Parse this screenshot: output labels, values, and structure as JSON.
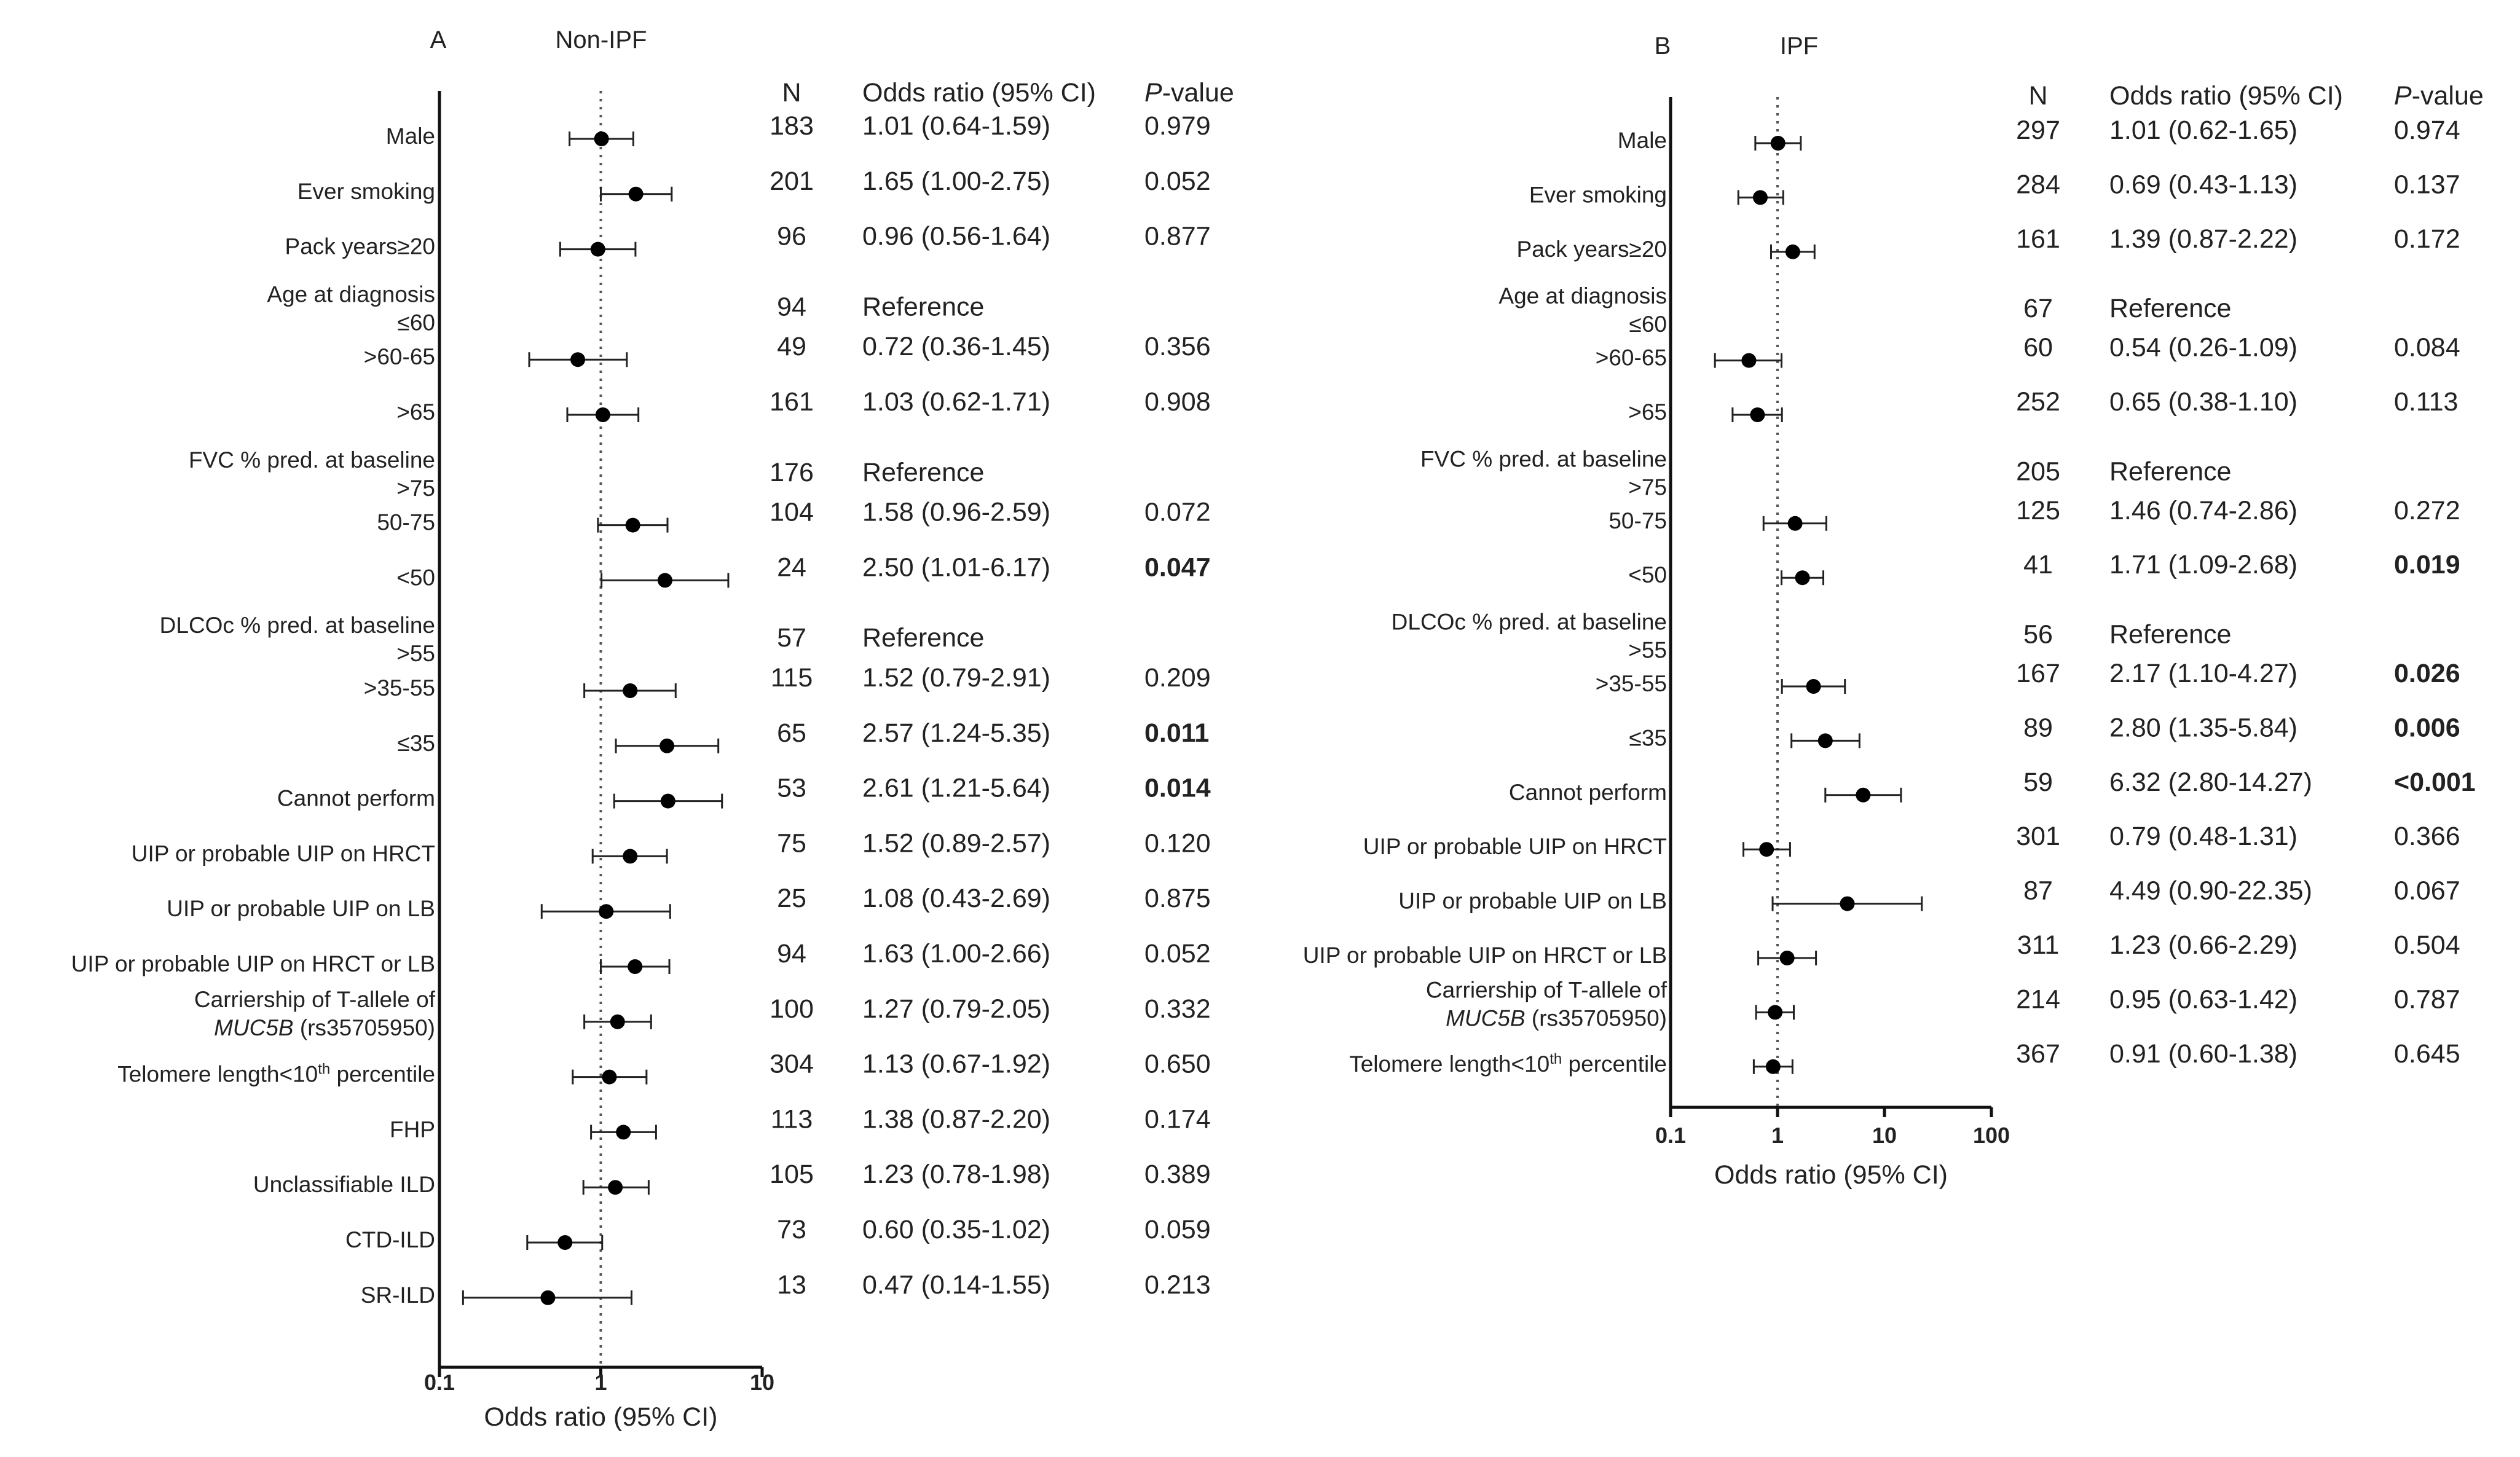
{
  "chart_data": [
    {
      "type": "forest",
      "panel_letter": "A",
      "title": "Non-IPF",
      "columns": {
        "n": "N",
        "or": "Odds ratio (95% CI)",
        "p_italic": "P",
        "p_rest": "-value"
      },
      "xlabel": "Odds ratio (95% CI)",
      "xscale": "log",
      "xlim": [
        0.1,
        10
      ],
      "xticks": [
        0.1,
        1,
        10
      ],
      "xtick_labels": [
        "0.1",
        "1",
        "10"
      ],
      "reference_line": 1,
      "rows": [
        {
          "label": "Male",
          "n": "183",
          "or_text": "1.01 (0.64-1.59)",
          "p": "0.979",
          "bold": false,
          "or": 1.01,
          "lo": 0.64,
          "hi": 1.59
        },
        {
          "label": "Ever smoking",
          "n": "201",
          "or_text": "1.65 (1.00-2.75)",
          "p": "0.052",
          "bold": false,
          "or": 1.65,
          "lo": 1.0,
          "hi": 2.75
        },
        {
          "label": "Pack years≥20",
          "n": "96",
          "or_text": "0.96 (0.56-1.64)",
          "p": "0.877",
          "bold": false,
          "or": 0.96,
          "lo": 0.56,
          "hi": 1.64
        },
        {
          "label": "Age at diagnosis",
          "label2": "≤60",
          "n": "94",
          "or_text": "Reference",
          "p": "",
          "bold": false
        },
        {
          "label": ">60-65",
          "n": "49",
          "or_text": "0.72 (0.36-1.45)",
          "p": "0.356",
          "bold": false,
          "or": 0.72,
          "lo": 0.36,
          "hi": 1.45
        },
        {
          "label": ">65",
          "n": "161",
          "or_text": "1.03 (0.62-1.71)",
          "p": "0.908",
          "bold": false,
          "or": 1.03,
          "lo": 0.62,
          "hi": 1.71
        },
        {
          "label": "FVC % pred. at baseline",
          "label2": ">75",
          "n": "176",
          "or_text": "Reference",
          "p": "",
          "bold": false
        },
        {
          "label": "50-75",
          "n": "104",
          "or_text": "1.58 (0.96-2.59)",
          "p": "0.072",
          "bold": false,
          "or": 1.58,
          "lo": 0.96,
          "hi": 2.59
        },
        {
          "label": "<50",
          "n": "24",
          "or_text": "2.50 (1.01-6.17)",
          "p": "0.047",
          "bold": true,
          "or": 2.5,
          "lo": 1.01,
          "hi": 6.17
        },
        {
          "label": "DLCOc % pred. at baseline",
          "label2": ">55",
          "n": "57",
          "or_text": "Reference",
          "p": "",
          "bold": false
        },
        {
          "label": ">35-55",
          "n": "115",
          "or_text": "1.52 (0.79-2.91)",
          "p": "0.209",
          "bold": false,
          "or": 1.52,
          "lo": 0.79,
          "hi": 2.91
        },
        {
          "label": "≤35",
          "n": "65",
          "or_text": "2.57 (1.24-5.35)",
          "p": "0.011",
          "bold": true,
          "or": 2.57,
          "lo": 1.24,
          "hi": 5.35
        },
        {
          "label": "Cannot perform",
          "n": "53",
          "or_text": "2.61 (1.21-5.64)",
          "p": "0.014",
          "bold": true,
          "or": 2.61,
          "lo": 1.21,
          "hi": 5.64
        },
        {
          "label": "UIP or probable UIP on HRCT",
          "n": "75",
          "or_text": "1.52 (0.89-2.57)",
          "p": "0.120",
          "bold": false,
          "or": 1.52,
          "lo": 0.89,
          "hi": 2.57
        },
        {
          "label": "UIP or probable UIP on LB",
          "n": "25",
          "or_text": "1.08 (0.43-2.69)",
          "p": "0.875",
          "bold": false,
          "or": 1.08,
          "lo": 0.43,
          "hi": 2.69
        },
        {
          "label": "UIP or probable UIP on HRCT or LB",
          "n": "94",
          "or_text": "1.63 (1.00-2.66)",
          "p": "0.052",
          "bold": false,
          "or": 1.63,
          "lo": 1.0,
          "hi": 2.66
        },
        {
          "label": "Carriership of T-allele of",
          "label2_italic": "MUC5B",
          "label2_rest": " (rs35705950)",
          "n": "100",
          "or_text": "1.27 (0.79-2.05)",
          "p": "0.332",
          "bold": false,
          "or": 1.27,
          "lo": 0.79,
          "hi": 2.05
        },
        {
          "label": "Telomere length<10",
          "label_sup": "th",
          "label_after": " percentile",
          "n": "304",
          "or_text": "1.13 (0.67-1.92)",
          "p": "0.650",
          "bold": false,
          "or": 1.13,
          "lo": 0.67,
          "hi": 1.92
        },
        {
          "label": "FHP",
          "n": "113",
          "or_text": "1.38 (0.87-2.20)",
          "p": "0.174",
          "bold": false,
          "or": 1.38,
          "lo": 0.87,
          "hi": 2.2
        },
        {
          "label": "Unclassifiable ILD",
          "n": "105",
          "or_text": "1.23 (0.78-1.98)",
          "p": "0.389",
          "bold": false,
          "or": 1.23,
          "lo": 0.78,
          "hi": 1.98
        },
        {
          "label": "CTD-ILD",
          "n": "73",
          "or_text": "0.60 (0.35-1.02)",
          "p": "0.059",
          "bold": false,
          "or": 0.6,
          "lo": 0.35,
          "hi": 1.02
        },
        {
          "label": "SR-ILD",
          "n": "13",
          "or_text": "0.47 (0.14-1.55)",
          "p": "0.213",
          "bold": false,
          "or": 0.47,
          "lo": 0.14,
          "hi": 1.55
        }
      ]
    },
    {
      "type": "forest",
      "panel_letter": "B",
      "title": "IPF",
      "columns": {
        "n": "N",
        "or": "Odds ratio (95% CI)",
        "p_italic": "P",
        "p_rest": "-value"
      },
      "xlabel": "Odds ratio (95% CI)",
      "xscale": "log",
      "xlim": [
        0.1,
        100
      ],
      "xticks": [
        0.1,
        1,
        10,
        100
      ],
      "xtick_labels": [
        "0.1",
        "1",
        "10",
        "100"
      ],
      "reference_line": 1,
      "rows": [
        {
          "label": "Male",
          "n": "297",
          "or_text": "1.01 (0.62-1.65)",
          "p": "0.974",
          "bold": false,
          "or": 1.01,
          "lo": 0.62,
          "hi": 1.65
        },
        {
          "label": "Ever smoking",
          "n": "284",
          "or_text": "0.69 (0.43-1.13)",
          "p": "0.137",
          "bold": false,
          "or": 0.69,
          "lo": 0.43,
          "hi": 1.13
        },
        {
          "label": "Pack years≥20",
          "n": "161",
          "or_text": "1.39 (0.87-2.22)",
          "p": "0.172",
          "bold": false,
          "or": 1.39,
          "lo": 0.87,
          "hi": 2.22
        },
        {
          "label": "Age at diagnosis",
          "label2": "≤60",
          "n": "67",
          "or_text": "Reference",
          "p": "",
          "bold": false
        },
        {
          "label": ">60-65",
          "n": "60",
          "or_text": "0.54 (0.26-1.09)",
          "p": "0.084",
          "bold": false,
          "or": 0.54,
          "lo": 0.26,
          "hi": 1.09
        },
        {
          "label": ">65",
          "n": "252",
          "or_text": "0.65 (0.38-1.10)",
          "p": "0.113",
          "bold": false,
          "or": 0.65,
          "lo": 0.38,
          "hi": 1.1
        },
        {
          "label": "FVC % pred. at baseline",
          "label2": ">75",
          "n": "205",
          "or_text": "Reference",
          "p": "",
          "bold": false
        },
        {
          "label": "50-75",
          "n": "125",
          "or_text": "1.46 (0.74-2.86)",
          "p": "0.272",
          "bold": false,
          "or": 1.46,
          "lo": 0.74,
          "hi": 2.86
        },
        {
          "label": "<50",
          "n": "41",
          "or_text": "1.71 (1.09-2.68)",
          "p": "0.019",
          "bold": true,
          "or": 1.71,
          "lo": 1.09,
          "hi": 2.68
        },
        {
          "label": "DLCOc % pred. at baseline",
          "label2": ">55",
          "n": "56",
          "or_text": "Reference",
          "p": "",
          "bold": false
        },
        {
          "label": ">35-55",
          "n": "167",
          "or_text": "2.17 (1.10-4.27)",
          "p": "0.026",
          "bold": true,
          "or": 2.17,
          "lo": 1.1,
          "hi": 4.27
        },
        {
          "label": "≤35",
          "n": "89",
          "or_text": "2.80 (1.35-5.84)",
          "p": "0.006",
          "bold": true,
          "or": 2.8,
          "lo": 1.35,
          "hi": 5.84
        },
        {
          "label": "Cannot perform",
          "n": "59",
          "or_text": "6.32 (2.80-14.27)",
          "p": "<0.001",
          "bold": true,
          "or": 6.32,
          "lo": 2.8,
          "hi": 14.27
        },
        {
          "label": "UIP or probable UIP on HRCT",
          "n": "301",
          "or_text": "0.79 (0.48-1.31)",
          "p": "0.366",
          "bold": false,
          "or": 0.79,
          "lo": 0.48,
          "hi": 1.31
        },
        {
          "label": "UIP or probable UIP on LB",
          "n": "87",
          "or_text": "4.49 (0.90-22.35)",
          "p": "0.067",
          "bold": false,
          "or": 4.49,
          "lo": 0.9,
          "hi": 22.35
        },
        {
          "label": "UIP or probable UIP on HRCT or LB",
          "n": "311",
          "or_text": "1.23 (0.66-2.29)",
          "p": "0.504",
          "bold": false,
          "or": 1.23,
          "lo": 0.66,
          "hi": 2.29
        },
        {
          "label": "Carriership of T-allele of",
          "label2_italic": "MUC5B",
          "label2_rest": " (rs35705950)",
          "n": "214",
          "or_text": "0.95 (0.63-1.42)",
          "p": "0.787",
          "bold": false,
          "or": 0.95,
          "lo": 0.63,
          "hi": 1.42
        },
        {
          "label": "Telomere length<10",
          "label_sup": "th",
          "label_after": " percentile",
          "n": "367",
          "or_text": "0.91 (0.60-1.38)",
          "p": "0.645",
          "bold": false,
          "or": 0.91,
          "lo": 0.6,
          "hi": 1.38
        }
      ]
    }
  ]
}
